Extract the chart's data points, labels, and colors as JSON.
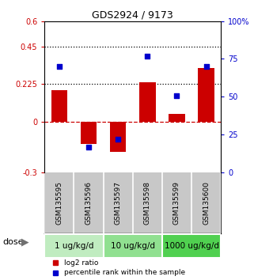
{
  "title": "GDS2924 / 9173",
  "samples": [
    "GSM135595",
    "GSM135596",
    "GSM135597",
    "GSM135598",
    "GSM135599",
    "GSM135600"
  ],
  "log2_ratio": [
    0.19,
    -0.13,
    -0.175,
    0.235,
    0.05,
    0.32
  ],
  "percentile_rank": [
    70,
    17,
    22,
    77,
    51,
    70
  ],
  "dose_groups": [
    {
      "label": "1 ug/kg/d",
      "cols": [
        0,
        1
      ],
      "color": "#c0ecc0"
    },
    {
      "label": "10 ug/kg/d",
      "cols": [
        2,
        3
      ],
      "color": "#90e090"
    },
    {
      "label": "1000 ug/kg/d",
      "cols": [
        4,
        5
      ],
      "color": "#50d050"
    }
  ],
  "red_color": "#cc0000",
  "blue_color": "#0000cc",
  "bar_width": 0.55,
  "ylim_left": [
    -0.3,
    0.6
  ],
  "ylim_right": [
    0,
    100
  ],
  "yticks_left": [
    -0.3,
    0,
    0.225,
    0.45,
    0.6
  ],
  "ytick_labels_left": [
    "-0.3",
    "0",
    "0.225",
    "0.45",
    "0.6"
  ],
  "yticks_right": [
    0,
    25,
    50,
    75,
    100
  ],
  "ytick_labels_right": [
    "0",
    "25",
    "50",
    "75",
    "100%"
  ],
  "hlines_dotted": [
    0.45,
    0.225
  ],
  "background_color": "#ffffff",
  "label_bg_color": "#c8c8c8",
  "legend_red": "log2 ratio",
  "legend_blue": "percentile rank within the sample"
}
